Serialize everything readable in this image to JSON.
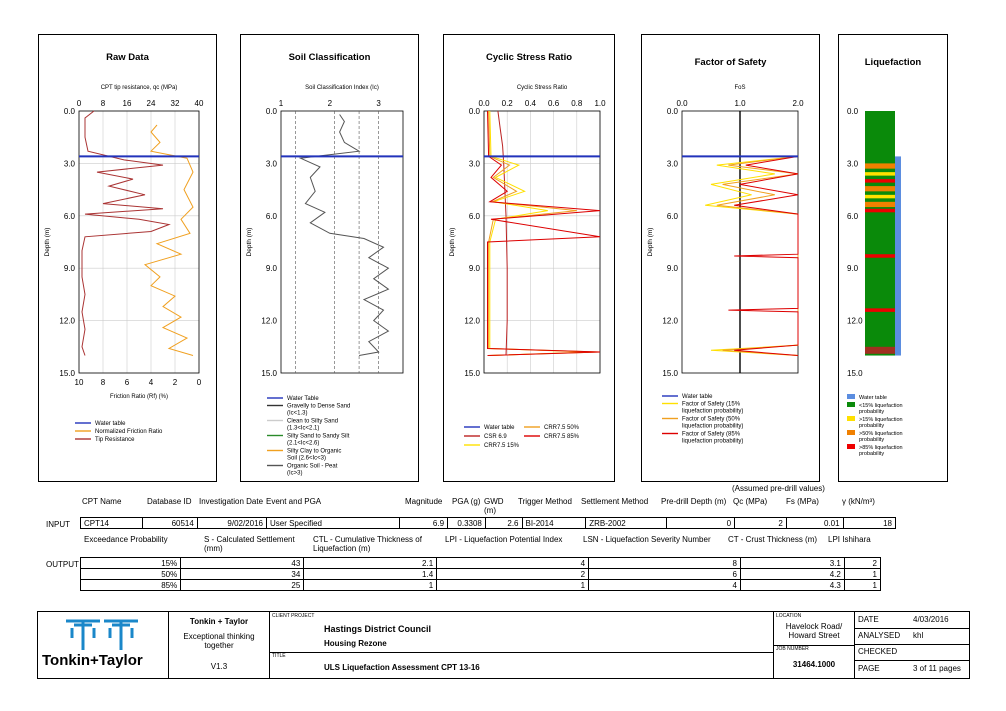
{
  "panels": [
    {
      "id": "raw",
      "title": "Raw Data",
      "top_axis_label": "CPT tip resistance, qc (MPa)",
      "top_ticks": [
        "0",
        "8",
        "16",
        "24",
        "32",
        "40"
      ],
      "bottom_axis_label": "Friction Ratio (Rf) (%)",
      "bottom_ticks": [
        "10",
        "8",
        "6",
        "4",
        "2",
        "0"
      ],
      "y_label": "Depth (m)",
      "legend": [
        "Water table",
        "Normalized Friction Ratio",
        "Tip Resistance"
      ]
    },
    {
      "id": "soil",
      "title": "Soil Classification",
      "top_axis_label": "Soil Classification Index (Ic)",
      "top_ticks": [
        "1",
        "2",
        "3"
      ],
      "y_label": "Depth (m)",
      "legend": [
        "Water Table",
        "Gravelly to Dense Sand (Ic<1.3)",
        "Clean to Silty Sand (1.3<Ic<2.1)",
        "Silty Sand to Sandy Silt (2.1<Ic<2.6)",
        "Silty Clay to Organic Soil (2.6<Ic<3)",
        "Organic Soil - Peat (Ic>3)"
      ]
    },
    {
      "id": "csr",
      "title": "Cyclic Stress Ratio",
      "top_axis_label": "Cyclic Stress Ratio",
      "top_ticks": [
        "0.0",
        "0.2",
        "0.4",
        "0.6",
        "0.8",
        "1.0"
      ],
      "y_label": "Depth (m)",
      "legend": [
        "Water table",
        "CRR7.5 50%",
        "CSR 6.9",
        "CRR7.5 85%",
        "CRR7.5 15%"
      ]
    },
    {
      "id": "fos",
      "title": "Factor of Safety",
      "top_axis_label": "FoS",
      "top_ticks": [
        "0.0",
        "1.0",
        "2.0"
      ],
      "y_label": "Depth (m)",
      "legend": [
        "Water table",
        "Factor of Safety (15% liquefaction probability)",
        "Factor of Safety (50% liquefaction probability)",
        "Factor of Safety (85% liquefaction probability)"
      ]
    },
    {
      "id": "liq",
      "title": "Liquefaction",
      "legend": [
        "Water table",
        "<15% liquefaction probability",
        ">15% liquefaction probability",
        ">50% liquefaction probability",
        ">85% liquefaction probability"
      ]
    }
  ],
  "depth_ticks": [
    "0.0",
    "3.0",
    "6.0",
    "9.0",
    "12.0",
    "15.0"
  ],
  "chart_data": [
    {
      "type": "line",
      "title": "Raw Data",
      "xlabel": "CPT tip resistance, qc (MPa)",
      "ylabel": "Depth (m)",
      "xlim": [
        0,
        40
      ],
      "ylim": [
        15,
        0
      ],
      "water_table_depth": 2.6,
      "series": [
        {
          "name": "Tip Resistance",
          "color": "#a33",
          "points": [
            [
              5,
              0
            ],
            [
              2,
              0.4
            ],
            [
              2,
              1.5
            ],
            [
              3,
              2.3
            ],
            [
              15,
              2.8
            ],
            [
              28,
              3.1
            ],
            [
              6,
              3.5
            ],
            [
              18,
              3.9
            ],
            [
              10,
              4.3
            ],
            [
              22,
              4.8
            ],
            [
              8,
              5.3
            ],
            [
              28,
              5.6
            ],
            [
              2,
              5.9
            ],
            [
              20,
              6.2
            ],
            [
              30,
              6.5
            ],
            [
              24,
              6.9
            ],
            [
              2,
              7.2
            ],
            [
              1,
              8
            ],
            [
              1,
              9.5
            ],
            [
              2,
              10.5
            ],
            [
              1,
              11.5
            ],
            [
              2,
              12.5
            ],
            [
              1,
              13.5
            ],
            [
              2,
              14
            ]
          ]
        },
        {
          "name": "Normalized Friction Ratio",
          "color": "#f0a020",
          "points": [
            [
              26,
              0.8
            ],
            [
              24,
              1.2
            ],
            [
              27,
              1.8
            ],
            [
              24,
              2.3
            ],
            [
              36,
              2.7
            ],
            [
              38,
              3.5
            ],
            [
              35,
              4.5
            ],
            [
              38,
              5.5
            ],
            [
              34,
              6.2
            ],
            [
              37,
              7
            ],
            [
              26,
              7.6
            ],
            [
              34,
              8.2
            ],
            [
              22,
              8.8
            ],
            [
              27,
              9.5
            ],
            [
              24,
              10
            ],
            [
              32,
              10.6
            ],
            [
              28,
              11.2
            ],
            [
              34,
              11.8
            ],
            [
              28,
              12.4
            ],
            [
              36,
              13
            ],
            [
              30,
              13.6
            ],
            [
              38,
              14
            ]
          ]
        }
      ]
    },
    {
      "type": "line",
      "title": "Soil Classification",
      "xlabel": "Soil Classification Index (Ic)",
      "ylabel": "Depth (m)",
      "xlim": [
        1,
        3.5
      ],
      "ylim": [
        15,
        0
      ],
      "water_table_depth": 2.6,
      "class_boundaries": [
        1.3,
        2.1,
        2.6,
        3.0
      ],
      "series": [
        {
          "name": "Soil Classification Index",
          "color": "#555",
          "points": [
            [
              2.2,
              0.2
            ],
            [
              2.3,
              0.6
            ],
            [
              2.2,
              1.2
            ],
            [
              2.3,
              1.8
            ],
            [
              2.6,
              2.3
            ],
            [
              1.4,
              2.7
            ],
            [
              1.8,
              3.2
            ],
            [
              1.6,
              3.8
            ],
            [
              1.7,
              4.6
            ],
            [
              1.5,
              5.3
            ],
            [
              1.9,
              5.8
            ],
            [
              1.6,
              6.4
            ],
            [
              2.0,
              7.0
            ],
            [
              2.7,
              7.3
            ],
            [
              3.1,
              7.8
            ],
            [
              2.8,
              8.4
            ],
            [
              3.2,
              9
            ],
            [
              2.9,
              9.6
            ],
            [
              3.2,
              10.2
            ],
            [
              2.7,
              10.8
            ],
            [
              3.1,
              11.4
            ],
            [
              2.9,
              12
            ],
            [
              3.2,
              12.6
            ],
            [
              2.8,
              13.2
            ],
            [
              3.0,
              13.8
            ],
            [
              2.6,
              14
            ]
          ]
        }
      ]
    },
    {
      "type": "line",
      "title": "Cyclic Stress Ratio",
      "xlabel": "Cyclic Stress Ratio",
      "ylabel": "Depth (m)",
      "xlim": [
        0,
        1
      ],
      "ylim": [
        15,
        0
      ],
      "water_table_depth": 2.6,
      "series": [
        {
          "name": "CSR 6.9",
          "color": "#b22",
          "points": [
            [
              0.12,
              0
            ],
            [
              0.14,
              1
            ],
            [
              0.16,
              2
            ],
            [
              0.17,
              3
            ],
            [
              0.19,
              6
            ],
            [
              0.2,
              9
            ],
            [
              0.2,
              12
            ],
            [
              0.19,
              14
            ]
          ]
        },
        {
          "name": "CRR7.5 15%",
          "color": "#ffe000",
          "points": [
            [
              0.05,
              0
            ],
            [
              0.06,
              2.6
            ],
            [
              0.3,
              3.1
            ],
            [
              0.1,
              3.8
            ],
            [
              0.35,
              4.6
            ],
            [
              0.08,
              5.2
            ],
            [
              0.55,
              5.7
            ],
            [
              0.1,
              6.2
            ],
            [
              0.05,
              7.5
            ],
            [
              0.05,
              13.6
            ],
            [
              0.9,
              13.8
            ],
            [
              0.05,
              14
            ]
          ]
        },
        {
          "name": "CRR7.5 50%",
          "color": "#f0a020",
          "points": [
            [
              0.04,
              0
            ],
            [
              0.05,
              2.6
            ],
            [
              0.22,
              3.1
            ],
            [
              0.08,
              3.8
            ],
            [
              0.28,
              4.6
            ],
            [
              0.07,
              5.2
            ],
            [
              0.8,
              5.7
            ],
            [
              0.08,
              6.2
            ],
            [
              0.04,
              7.5
            ],
            [
              0.04,
              13.6
            ],
            [
              1.0,
              13.8
            ],
            [
              0.04,
              14
            ]
          ]
        },
        {
          "name": "CRR7.5 85%",
          "color": "#d00",
          "points": [
            [
              0.03,
              0
            ],
            [
              0.04,
              2.6
            ],
            [
              0.15,
              3.1
            ],
            [
              0.06,
              3.8
            ],
            [
              0.2,
              4.6
            ],
            [
              0.05,
              5.2
            ],
            [
              1.0,
              5.7
            ],
            [
              0.06,
              6.2
            ],
            [
              1.0,
              7.2
            ],
            [
              0.03,
              7.5
            ],
            [
              0.03,
              13.6
            ],
            [
              1.0,
              13.8
            ],
            [
              0.03,
              14
            ]
          ]
        }
      ]
    },
    {
      "type": "line",
      "title": "Factor of Safety",
      "xlabel": "FoS",
      "ylabel": "Depth (m)",
      "xlim": [
        0,
        2
      ],
      "ylim": [
        15,
        0
      ],
      "water_table_depth": 2.6,
      "reference_line": 1.0,
      "series": [
        {
          "name": "Factor of Safety (15% liquefaction probability)",
          "color": "#ffe000",
          "points": [
            [
              2,
              2.6
            ],
            [
              0.6,
              3.1
            ],
            [
              1.6,
              3.6
            ],
            [
              0.5,
              4.2
            ],
            [
              1.2,
              4.8
            ],
            [
              0.4,
              5.4
            ],
            [
              2,
              5.9
            ],
            [
              2,
              13.4
            ],
            [
              0.5,
              13.7
            ],
            [
              2,
              14
            ]
          ]
        },
        {
          "name": "Factor of Safety (50% liquefaction probability)",
          "color": "#f0a020",
          "points": [
            [
              2,
              2.6
            ],
            [
              0.8,
              3.1
            ],
            [
              2,
              3.6
            ],
            [
              0.7,
              4.2
            ],
            [
              1.6,
              4.8
            ],
            [
              0.6,
              5.4
            ],
            [
              2,
              5.9
            ],
            [
              2,
              13.4
            ],
            [
              0.7,
              13.7
            ],
            [
              2,
              14
            ]
          ]
        },
        {
          "name": "Factor of Safety (85% liquefaction probability)",
          "color": "#d00",
          "points": [
            [
              2,
              2.6
            ],
            [
              1.1,
              3.1
            ],
            [
              2,
              3.6
            ],
            [
              1.0,
              4.2
            ],
            [
              2,
              4.8
            ],
            [
              0.9,
              5.4
            ],
            [
              2,
              5.9
            ],
            [
              2,
              8.2
            ],
            [
              0.9,
              8.3
            ],
            [
              2,
              8.4
            ],
            [
              2,
              11.3
            ],
            [
              0.8,
              11.4
            ],
            [
              2,
              11.5
            ],
            [
              2,
              13.4
            ],
            [
              0.9,
              13.7
            ],
            [
              2,
              14
            ]
          ]
        }
      ]
    },
    {
      "type": "heatmap",
      "title": "Liquefaction",
      "ylabel": "Depth (m)",
      "ylim": [
        15,
        0
      ],
      "water_table_depth": 2.6,
      "bands": [
        {
          "from": 0,
          "to": 14,
          "class": "<15% liquefaction probability",
          "color": "#0a8a0a"
        },
        {
          "from": 3.0,
          "to": 3.3,
          "class": ">50% liquefaction probability",
          "color": "#f08000"
        },
        {
          "from": 3.5,
          "to": 3.7,
          "class": ">15% liquefaction probability",
          "color": "#ffe000"
        },
        {
          "from": 3.9,
          "to": 4.1,
          "class": ">85% liquefaction probability",
          "color": "#e00"
        },
        {
          "from": 4.3,
          "to": 4.6,
          "class": ">50% liquefaction probability",
          "color": "#f08000"
        },
        {
          "from": 4.8,
          "to": 5.0,
          "class": ">15% liquefaction probability",
          "color": "#ffe000"
        },
        {
          "from": 5.2,
          "to": 5.5,
          "class": ">50% liquefaction probability",
          "color": "#f08000"
        },
        {
          "from": 5.6,
          "to": 5.8,
          "class": ">85% liquefaction probability",
          "color": "#e00"
        },
        {
          "from": 8.2,
          "to": 8.4,
          "class": ">85% liquefaction probability",
          "color": "#e00"
        },
        {
          "from": 11.3,
          "to": 11.5,
          "class": ">85% liquefaction probability",
          "color": "#e00"
        },
        {
          "from": 13.5,
          "to": 13.9,
          "class": ">85% liquefaction probability",
          "color": "#a03020"
        }
      ]
    }
  ],
  "params": {
    "assumed_note": "(Assumed pre-drill values)",
    "input_headers": [
      "CPT Name",
      "Database ID",
      "Investigation Date",
      "Event and PGA",
      "Magnitude",
      "PGA (g)",
      "GWD (m)",
      "Trigger Method",
      "Settlement Method",
      "Pre-drill Depth (m)",
      "Qc (MPa)",
      "Fs (MPa)",
      "γ (kN/m³)"
    ],
    "input_label": "INPUT",
    "input_row": [
      "CPT14",
      "60514",
      "9/02/2016",
      "User Specified",
      "6.9",
      "0.3308",
      "2.6",
      "BI-2014",
      "ZRB-2002",
      "0",
      "2",
      "0.01",
      "18"
    ],
    "output_headers": [
      "Exceedance Probability",
      "S - Calculated Settlement (mm)",
      "CTL - Cumulative Thickness of Liquefaction (m)",
      "LPI - Liquefaction Potential Index",
      "LSN - Liquefaction Severity Number",
      "CT - Crust Thickness (m)",
      "LPI Ishihara"
    ],
    "output_label": "OUTPUT",
    "output_rows": [
      [
        "15%",
        "43",
        "2.1",
        "4",
        "8",
        "3.1",
        "2"
      ],
      [
        "50%",
        "34",
        "1.4",
        "2",
        "6",
        "4.2",
        "1"
      ],
      [
        "85%",
        "25",
        "1",
        "1",
        "4",
        "4.3",
        "1"
      ]
    ]
  },
  "title_block": {
    "logo_text": "Tonkin+Taylor",
    "company": "Tonkin + Taylor",
    "tagline": "Exceptional thinking together",
    "version": "V1.3",
    "client_label": "CLIENT PROJECT",
    "client": "Hastings District Council",
    "project": "Housing Rezone",
    "title_label": "TITLE",
    "title": "ULS Liquefaction Assessment CPT 13-16",
    "location_label": "LOCATION",
    "location": "Havelock Road/ Howard Street",
    "job_label": "JOB NUMBER",
    "job": "31464.1000",
    "date_label": "DATE",
    "date": "4/03/2016",
    "analysed_label": "ANALYSED",
    "analysed": "khl",
    "checked_label": "CHECKED",
    "checked": "",
    "page_label": "PAGE",
    "page": "3 of 11 pages"
  }
}
